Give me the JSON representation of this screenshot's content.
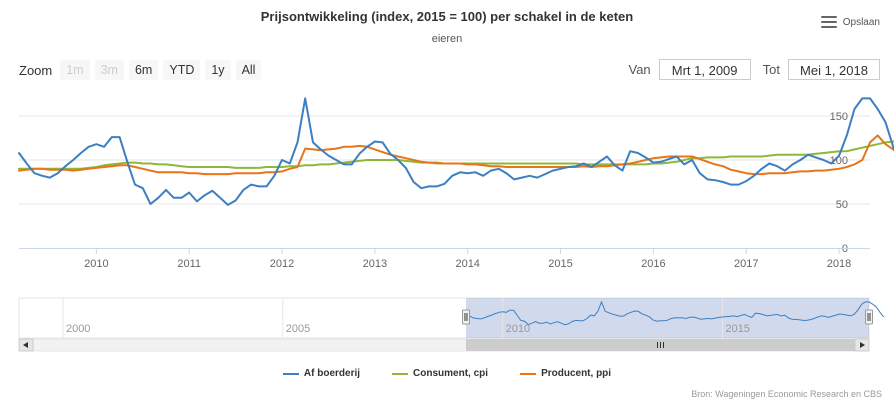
{
  "title": "Prijsontwikkeling (index, 2015 = 100) per schakel in de keten",
  "subtitle": "eieren",
  "export_label": "Opslaan",
  "zoom": {
    "label": "Zoom",
    "buttons": [
      {
        "label": "1m",
        "disabled": true
      },
      {
        "label": "3m",
        "disabled": true
      },
      {
        "label": "6m",
        "disabled": false
      },
      {
        "label": "YTD",
        "disabled": false
      },
      {
        "label": "1y",
        "disabled": false
      },
      {
        "label": "All",
        "disabled": false
      }
    ]
  },
  "range": {
    "from_label": "Van",
    "from_value": "Mrt 1, 2009",
    "to_label": "Tot",
    "to_value": "Mei 1, 2018"
  },
  "credits": "Bron: Wageningen Economic Research en CBS",
  "colors": {
    "farm": "#3d7fc1",
    "consumer": "#8db83a",
    "producer": "#e8751a",
    "navigator_mask": "rgba(102,133,194,0.3)",
    "grid": "#e6e6e6"
  },
  "chart_data": {
    "type": "line",
    "x_range": [
      "2009-03",
      "2018-05"
    ],
    "ylim": [
      0,
      175
    ],
    "y_ticks": [
      0,
      50,
      100,
      150
    ],
    "x_ticks": [
      "2010",
      "2011",
      "2012",
      "2013",
      "2014",
      "2015",
      "2016",
      "2017",
      "2018"
    ],
    "legend_position": "bottom",
    "grid": true,
    "series": [
      {
        "name": "Af boerderij",
        "key": "farm",
        "start": "2009-03",
        "values": [
          108,
          96,
          85,
          82,
          80,
          85,
          93,
          100,
          108,
          115,
          118,
          115,
          126,
          126,
          98,
          72,
          68,
          50,
          57,
          66,
          57,
          57,
          63,
          53,
          60,
          65,
          57,
          49,
          54,
          66,
          72,
          70,
          70,
          82,
          100,
          96,
          120,
          170,
          120,
          112,
          105,
          100,
          95,
          95,
          107,
          115,
          121,
          120,
          107,
          100,
          91,
          75,
          68,
          70,
          70,
          73,
          82,
          86,
          85,
          86,
          82,
          88,
          90,
          85,
          78,
          80,
          82,
          80,
          84,
          88,
          90,
          92,
          93,
          96,
          92,
          98,
          104,
          94,
          88,
          110,
          108,
          103,
          97,
          98,
          101,
          104,
          95,
          100,
          85,
          78,
          77,
          75,
          72,
          72,
          76,
          82,
          90,
          96,
          93,
          88,
          95,
          100,
          106,
          103,
          100,
          96,
          105,
          128,
          158,
          170,
          170,
          158,
          143,
          115,
          90
        ]
      },
      {
        "name": "Consument, cpi",
        "key": "consumer",
        "start": "2009-03",
        "values": [
          90,
          90,
          90,
          90,
          90,
          90,
          90,
          90,
          90,
          91,
          92,
          94,
          95,
          96,
          97,
          97,
          96,
          96,
          95,
          95,
          94,
          93,
          92,
          92,
          92,
          92,
          92,
          92,
          91,
          91,
          91,
          91,
          92,
          92,
          92,
          93,
          93,
          94,
          94,
          95,
          95,
          96,
          97,
          98,
          99,
          100,
          100,
          100,
          100,
          100,
          99,
          98,
          97,
          97,
          96,
          96,
          96,
          96,
          96,
          96,
          96,
          96,
          96,
          96,
          96,
          96,
          96,
          96,
          96,
          96,
          96,
          96,
          96,
          95,
          95,
          95,
          95,
          95,
          95,
          95,
          95,
          95,
          96,
          96,
          97,
          98,
          100,
          102,
          102,
          103,
          103,
          103,
          104,
          104,
          104,
          104,
          104,
          105,
          106,
          106,
          106,
          106,
          106,
          107,
          108,
          109,
          110,
          110,
          112,
          114,
          116,
          118,
          120,
          121,
          122
        ]
      },
      {
        "name": "Producent, ppi",
        "key": "producer",
        "start": "2009-03",
        "values": [
          88,
          89,
          90,
          90,
          89,
          89,
          89,
          88,
          89,
          90,
          91,
          92,
          93,
          94,
          94,
          92,
          90,
          88,
          86,
          86,
          86,
          86,
          85,
          85,
          84,
          84,
          84,
          84,
          85,
          85,
          85,
          85,
          86,
          86,
          87,
          90,
          92,
          113,
          112,
          111,
          112,
          113,
          115,
          115,
          116,
          115,
          112,
          109,
          106,
          104,
          102,
          100,
          98,
          97,
          97,
          96,
          96,
          96,
          95,
          95,
          94,
          93,
          93,
          92,
          92,
          92,
          92,
          92,
          92,
          92,
          92,
          92,
          92,
          93,
          92,
          93,
          93,
          94,
          95,
          96,
          98,
          100,
          102,
          103,
          104,
          104,
          104,
          104,
          101,
          98,
          95,
          93,
          89,
          87,
          85,
          84,
          84,
          85,
          85,
          85,
          86,
          87,
          87,
          88,
          88,
          89,
          90,
          92,
          95,
          100,
          120,
          128,
          118,
          112,
          108
        ]
      }
    ],
    "navigator": {
      "x_range": [
        "1999-01",
        "2018-05"
      ],
      "x_ticks": [
        "2000",
        "2005",
        "2010",
        "2015"
      ],
      "selected": [
        "2009-03",
        "2018-05"
      ]
    }
  }
}
